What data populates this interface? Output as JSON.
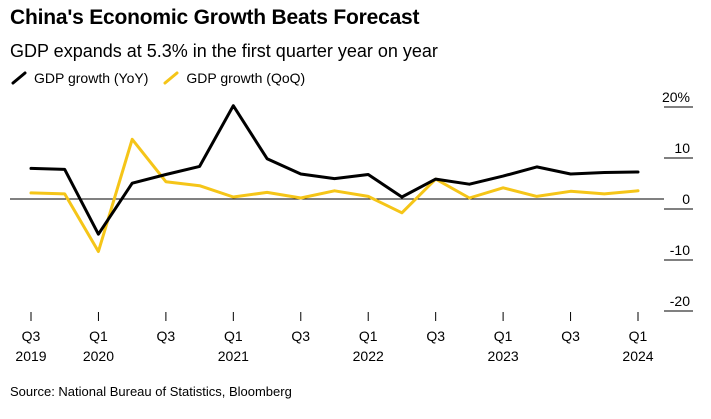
{
  "header": {
    "title": "China's Economic Growth Beats Forecast",
    "subtitle": "GDP expands at 5.3% in the first quarter year on year"
  },
  "legend": [
    {
      "label": "GDP growth (YoY)",
      "color": "#000000"
    },
    {
      "label": "GDP growth (QoQ)",
      "color": "#f5c518"
    }
  ],
  "footer": {
    "source": "Source: National Bureau of Statistics, Bloomberg"
  },
  "chart_data": {
    "type": "line",
    "title": "China's Economic Growth Beats Forecast",
    "subtitle": "GDP expands at 5.3% in the first quarter year on year",
    "x": [
      "Q3 2019",
      "Q4 2019",
      "Q1 2020",
      "Q2 2020",
      "Q3 2020",
      "Q4 2020",
      "Q1 2021",
      "Q2 2021",
      "Q3 2021",
      "Q4 2021",
      "Q1 2022",
      "Q2 2022",
      "Q3 2022",
      "Q4 2022",
      "Q1 2023",
      "Q2 2023",
      "Q3 2023",
      "Q4 2023",
      "Q1 2024"
    ],
    "series": [
      {
        "name": "GDP growth (YoY)",
        "color": "#000000",
        "values": [
          6.0,
          5.8,
          -6.9,
          3.1,
          4.8,
          6.4,
          18.3,
          7.9,
          4.9,
          4.0,
          4.8,
          0.4,
          3.9,
          2.9,
          4.5,
          6.3,
          4.9,
          5.2,
          5.3
        ]
      },
      {
        "name": "GDP growth (QoQ)",
        "color": "#f5c518",
        "values": [
          1.2,
          1.0,
          -10.3,
          11.7,
          3.4,
          2.6,
          0.4,
          1.3,
          0.2,
          1.6,
          0.5,
          -2.7,
          3.9,
          0.2,
          2.2,
          0.5,
          1.5,
          1.0,
          1.6
        ]
      }
    ],
    "x_tick_labels": [
      {
        "index": 0,
        "quarter": "Q3",
        "year": "2019"
      },
      {
        "index": 2,
        "quarter": "Q1",
        "year": "2020"
      },
      {
        "index": 4,
        "quarter": "Q3",
        "year": ""
      },
      {
        "index": 6,
        "quarter": "Q1",
        "year": "2021"
      },
      {
        "index": 8,
        "quarter": "Q3",
        "year": ""
      },
      {
        "index": 10,
        "quarter": "Q1",
        "year": "2022"
      },
      {
        "index": 12,
        "quarter": "Q3",
        "year": ""
      },
      {
        "index": 14,
        "quarter": "Q1",
        "year": "2023"
      },
      {
        "index": 16,
        "quarter": "Q3",
        "year": ""
      },
      {
        "index": 18,
        "quarter": "Q1",
        "year": "2024"
      }
    ],
    "y_ticks": [
      {
        "value": 20,
        "label": "20%"
      },
      {
        "value": 10,
        "label": "10"
      },
      {
        "value": 0,
        "label": "0"
      },
      {
        "value": -10,
        "label": "-10"
      },
      {
        "value": -20,
        "label": "-20"
      }
    ],
    "ylim": [
      -20,
      20
    ],
    "y_axis_position": "right",
    "grid": false,
    "zero_line": true,
    "legend_position": "top-left"
  }
}
